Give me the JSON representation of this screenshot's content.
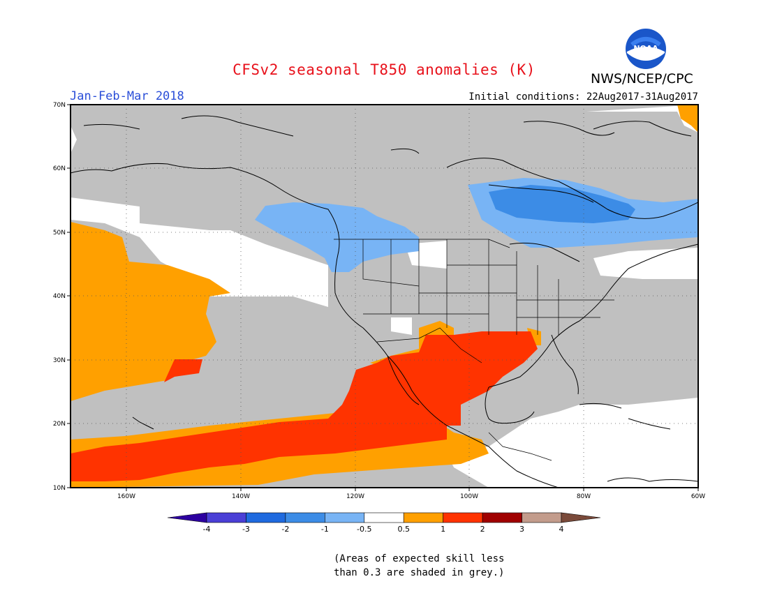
{
  "header": {
    "title": "CFSv2 seasonal T850 anomalies (K)",
    "agency": "NWS/NCEP/CPC",
    "season": "Jan-Feb-Mar 2018",
    "initial_conditions": "Initial conditions: 22Aug2017-31Aug2017",
    "logo_text": "NOAA"
  },
  "map": {
    "lat_labels": [
      "70N",
      "60N",
      "50N",
      "40N",
      "30N",
      "20N",
      "10N"
    ],
    "lon_labels": [
      "160W",
      "140W",
      "120W",
      "100W",
      "80W",
      "60W"
    ],
    "colors": {
      "grey": "#c0c0c0",
      "orange": "#ffa000",
      "red": "#ff3300",
      "lightblue": "#78b4f5",
      "blue": "#3c8ce6",
      "white": "#ffffff"
    }
  },
  "colorbar": {
    "labels": [
      "-4",
      "-3",
      "-2",
      "-1",
      "-0.5",
      "0.5",
      "1",
      "2",
      "3",
      "4"
    ],
    "colors": [
      "#2d00a0",
      "#4a3fd6",
      "#1f6adf",
      "#3c8ce6",
      "#78b4f5",
      "#ffffff",
      "#ffa000",
      "#ff3300",
      "#a00000",
      "#c39c8c",
      "#7a4a3a"
    ]
  },
  "footnote": {
    "line1": "(Areas of expected skill less",
    "line2": "than 0.3 are shaded in grey.)"
  }
}
